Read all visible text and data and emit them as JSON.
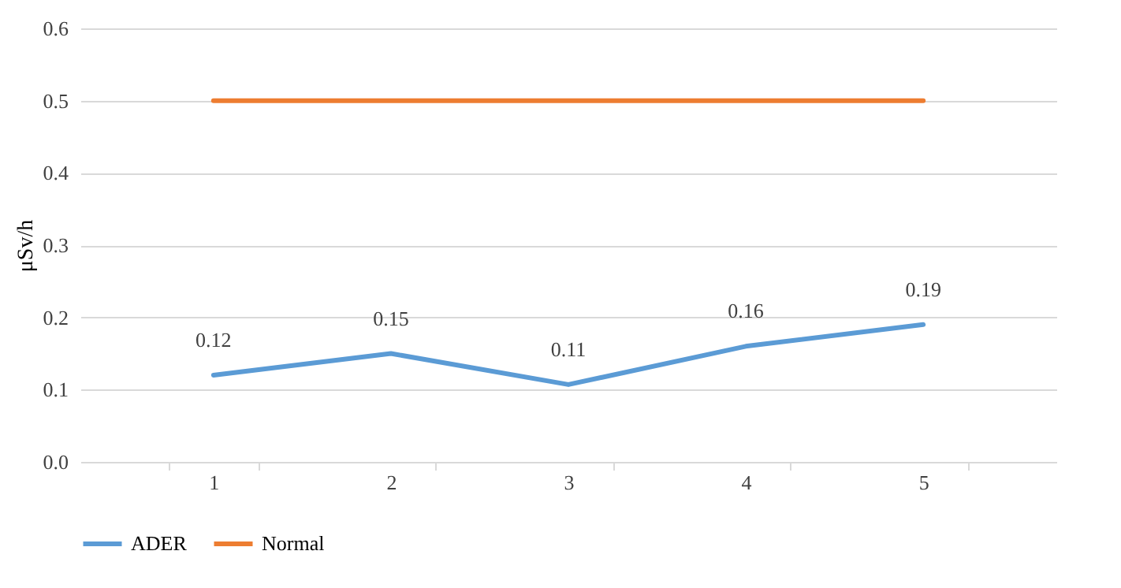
{
  "chart_data": {
    "type": "line",
    "ylabel": "μSv/h",
    "categories": [
      "1",
      "2",
      "3",
      "4",
      "5"
    ],
    "series": [
      {
        "name": "ADER",
        "color": "#5b9bd5",
        "values": [
          0.12,
          0.15,
          0.107,
          0.16,
          0.19
        ],
        "value_labels": [
          "0.12",
          "0.15",
          "0.11",
          "0.16",
          "0.19"
        ]
      },
      {
        "name": "Normal",
        "color": "#ed7d31",
        "values": [
          0.5,
          0.5,
          0.5,
          0.5,
          0.5
        ]
      }
    ],
    "ylim": [
      0,
      0.6
    ],
    "yticks": [
      {
        "value": 0,
        "label": "0.0"
      },
      {
        "value": 0.1,
        "label": "0.1"
      },
      {
        "value": 0.2,
        "label": "0.2"
      },
      {
        "value": 0.3,
        "label": "0.3"
      },
      {
        "value": 0.4,
        "label": "0.4"
      },
      {
        "value": 0.5,
        "label": "0.5"
      },
      {
        "value": 0.6,
        "label": "0.6"
      }
    ],
    "grid": "y",
    "legend": "bottom",
    "marker": "none",
    "line_style": "solid"
  }
}
